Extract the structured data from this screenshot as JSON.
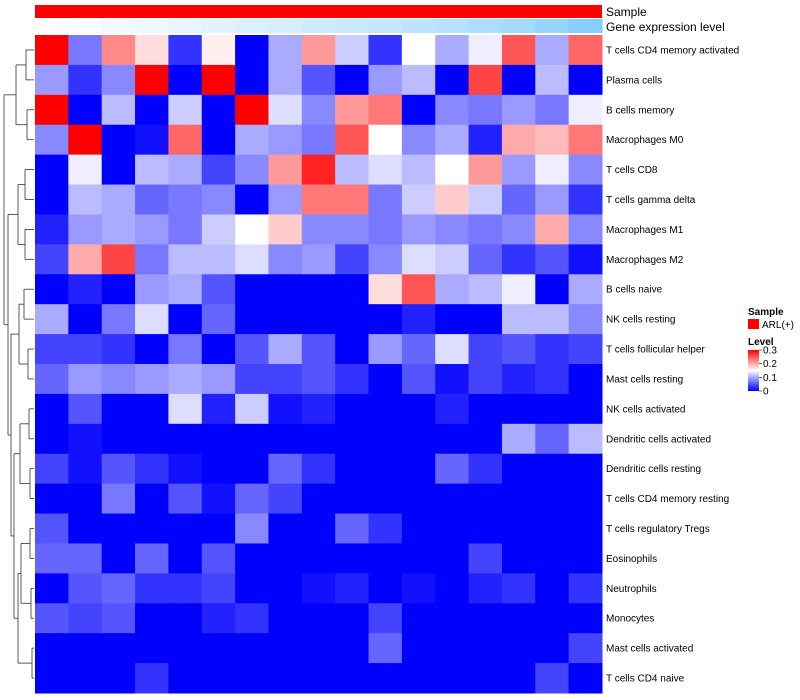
{
  "chart_data": {
    "type": "heatmap",
    "annotations": [
      {
        "label": "Sample",
        "color": "#ff0000"
      },
      {
        "label": "Gene expression level",
        "gradient": [
          "#ffffff",
          "#87cefa"
        ]
      }
    ],
    "rows": [
      "T cells CD4 memory activated",
      "Plasma cells",
      "B cells memory",
      "Macrophages M0",
      "T cells CD8",
      "T cells gamma delta",
      "Macrophages M1",
      "Macrophages M2",
      "B cells naive",
      "NK cells resting",
      "T cells follicular helper",
      "Mast cells resting",
      "NK cells activated",
      "Dendritic cells activated",
      "Dendritic cells resting",
      "T cells CD4 memory resting",
      "T cells regulatory  Tregs",
      "Eosinophils",
      "Neutrophils",
      "Monocytes",
      "Mast cells activated",
      "T cells CD4 naive"
    ],
    "values": [
      [
        0.3,
        0.07,
        0.22,
        0.17,
        0.03,
        0.16,
        0.0,
        0.1,
        0.21,
        0.12,
        0.03,
        0.15,
        0.1,
        0.14,
        0.25,
        0.1,
        0.24
      ],
      [
        0.09,
        0.03,
        0.08,
        0.3,
        0.0,
        0.3,
        0.0,
        0.1,
        0.05,
        0.0,
        0.09,
        0.11,
        0.0,
        0.26,
        0.0,
        0.11,
        0.0
      ],
      [
        0.3,
        0.0,
        0.11,
        0.0,
        0.12,
        0.0,
        0.3,
        0.13,
        0.08,
        0.21,
        0.23,
        0.0,
        0.08,
        0.07,
        0.09,
        0.07,
        0.14
      ],
      [
        0.08,
        0.3,
        0.0,
        0.01,
        0.24,
        0.0,
        0.1,
        0.09,
        0.07,
        0.25,
        0.15,
        0.08,
        0.1,
        0.02,
        0.2,
        0.19,
        0.23
      ],
      [
        0.0,
        0.14,
        0.0,
        0.11,
        0.1,
        0.04,
        0.08,
        0.21,
        0.28,
        0.11,
        0.13,
        0.11,
        0.15,
        0.21,
        0.09,
        0.14,
        0.08
      ],
      [
        0.0,
        0.11,
        0.1,
        0.06,
        0.07,
        0.08,
        0.0,
        0.09,
        0.23,
        0.23,
        0.07,
        0.12,
        0.18,
        0.12,
        0.06,
        0.09,
        0.03
      ],
      [
        0.02,
        0.09,
        0.1,
        0.09,
        0.07,
        0.12,
        0.15,
        0.18,
        0.08,
        0.08,
        0.07,
        0.09,
        0.08,
        0.07,
        0.08,
        0.2,
        0.08
      ],
      [
        0.04,
        0.2,
        0.26,
        0.07,
        0.11,
        0.11,
        0.13,
        0.08,
        0.09,
        0.04,
        0.08,
        0.13,
        0.12,
        0.06,
        0.03,
        0.05,
        0.01
      ],
      [
        0.0,
        0.02,
        0.0,
        0.09,
        0.1,
        0.05,
        0.0,
        0.0,
        0.0,
        0.0,
        0.17,
        0.25,
        0.1,
        0.11,
        0.14,
        0.0,
        0.1
      ],
      [
        0.1,
        0.0,
        0.07,
        0.13,
        0.0,
        0.06,
        0.0,
        0.0,
        0.0,
        0.0,
        0.0,
        0.02,
        0.0,
        0.0,
        0.11,
        0.11,
        0.08
      ],
      [
        0.04,
        0.04,
        0.03,
        0.0,
        0.07,
        0.0,
        0.05,
        0.1,
        0.05,
        0.0,
        0.09,
        0.06,
        0.13,
        0.04,
        0.05,
        0.03,
        0.04
      ],
      [
        0.06,
        0.09,
        0.08,
        0.09,
        0.1,
        0.09,
        0.04,
        0.04,
        0.05,
        0.03,
        0.0,
        0.05,
        0.01,
        0.04,
        0.02,
        0.03,
        0.0
      ],
      [
        0.0,
        0.05,
        0.0,
        0.0,
        0.13,
        0.02,
        0.12,
        0.01,
        0.02,
        0.0,
        0.0,
        0.0,
        0.02,
        0.0,
        0.0,
        0.0,
        0.0
      ],
      [
        0.0,
        0.01,
        0.0,
        0.0,
        0.0,
        0.0,
        0.0,
        0.0,
        0.0,
        0.0,
        0.0,
        0.0,
        0.0,
        0.0,
        0.1,
        0.06,
        0.11
      ],
      [
        0.04,
        0.01,
        0.05,
        0.03,
        0.01,
        0.0,
        0.0,
        0.06,
        0.03,
        0.0,
        0.0,
        0.0,
        0.06,
        0.03,
        0.0,
        0.0,
        0.0
      ],
      [
        0.0,
        0.0,
        0.07,
        0.0,
        0.05,
        0.01,
        0.06,
        0.04,
        0.0,
        0.0,
        0.0,
        0.0,
        0.0,
        0.0,
        0.0,
        0.0,
        0.0
      ],
      [
        0.05,
        0.0,
        0.0,
        0.0,
        0.0,
        0.0,
        0.08,
        0.0,
        0.0,
        0.06,
        0.03,
        0.0,
        0.0,
        0.0,
        0.0,
        0.0,
        0.0
      ],
      [
        0.06,
        0.06,
        0.0,
        0.06,
        0.0,
        0.05,
        0.0,
        0.0,
        0.0,
        0.0,
        0.0,
        0.0,
        0.0,
        0.04,
        0.0,
        0.0,
        0.0
      ],
      [
        0.0,
        0.05,
        0.06,
        0.03,
        0.03,
        0.04,
        0.0,
        0.0,
        0.01,
        0.02,
        0.0,
        0.01,
        0.0,
        0.02,
        0.03,
        0.0,
        0.03
      ],
      [
        0.05,
        0.04,
        0.05,
        0.0,
        0.0,
        0.02,
        0.03,
        0.0,
        0.0,
        0.0,
        0.04,
        0.0,
        0.0,
        0.0,
        0.0,
        0.0,
        0.0
      ],
      [
        0.0,
        0.0,
        0.0,
        0.0,
        0.0,
        0.0,
        0.0,
        0.0,
        0.0,
        0.0,
        0.06,
        0.0,
        0.0,
        0.0,
        0.0,
        0.0,
        0.04
      ],
      [
        0.0,
        0.0,
        0.0,
        0.03,
        0.0,
        0.0,
        0.0,
        0.0,
        0.0,
        0.0,
        0.0,
        0.0,
        0.0,
        0.0,
        0.0,
        0.04,
        0.0
      ]
    ],
    "expression_level": [
      0.0,
      0.05,
      0.1,
      0.15,
      0.2,
      0.25,
      0.3,
      0.35,
      0.4,
      0.45,
      0.5,
      0.55,
      0.6,
      0.7,
      0.75,
      0.85,
      1.0
    ],
    "color_scale": {
      "min": 0,
      "mid": 0.15,
      "max": 0.3,
      "low": "#0000ff",
      "midColor": "#ffffff",
      "high": "#ff0000"
    },
    "legend": {
      "sample_title": "Sample",
      "sample_items": [
        {
          "label": "ARL(+)",
          "color": "#ff0000"
        }
      ],
      "level_title": "Level",
      "level_ticks": [
        {
          "value": 0.3,
          "label": "0.3"
        },
        {
          "value": 0.2,
          "label": "0.2"
        },
        {
          "value": 0.1,
          "label": "0.1"
        },
        {
          "value": 0,
          "label": "0"
        }
      ]
    },
    "dendrogram": "row clustering dendrogram (left)"
  }
}
